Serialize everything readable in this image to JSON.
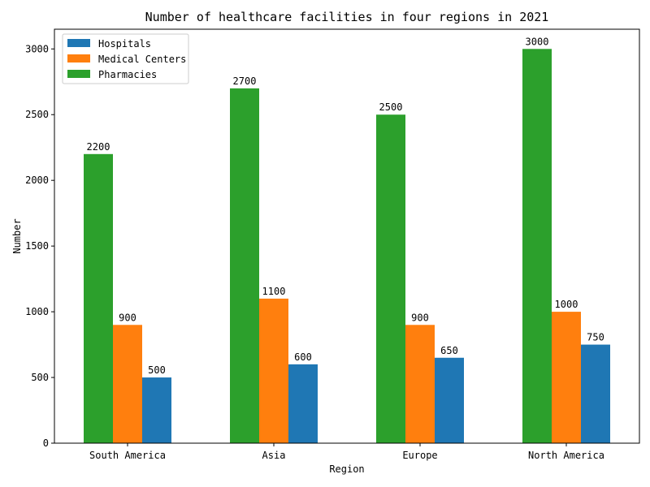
{
  "chart_data": {
    "type": "bar",
    "title": "Number of healthcare facilities in four regions in 2021",
    "xlabel": "Region",
    "ylabel": "Number",
    "categories": [
      "South America",
      "Asia",
      "Europe",
      "North America"
    ],
    "series": [
      {
        "name": "Hospitals",
        "values": [
          500,
          600,
          650,
          750
        ],
        "color": "#1f77b4"
      },
      {
        "name": "Medical Centers",
        "values": [
          900,
          1100,
          900,
          1000
        ],
        "color": "#ff7f0e"
      },
      {
        "name": "Pharmacies",
        "values": [
          2200,
          2700,
          2500,
          3000
        ],
        "color": "#2ca02c"
      }
    ],
    "bar_order_left_to_right": [
      "Pharmacies",
      "Medical Centers",
      "Hospitals"
    ],
    "ylim": [
      0,
      3150
    ],
    "yticks": [
      0,
      500,
      1000,
      1500,
      2000,
      2500,
      3000
    ],
    "grid": false,
    "legend_position": "top-left"
  }
}
